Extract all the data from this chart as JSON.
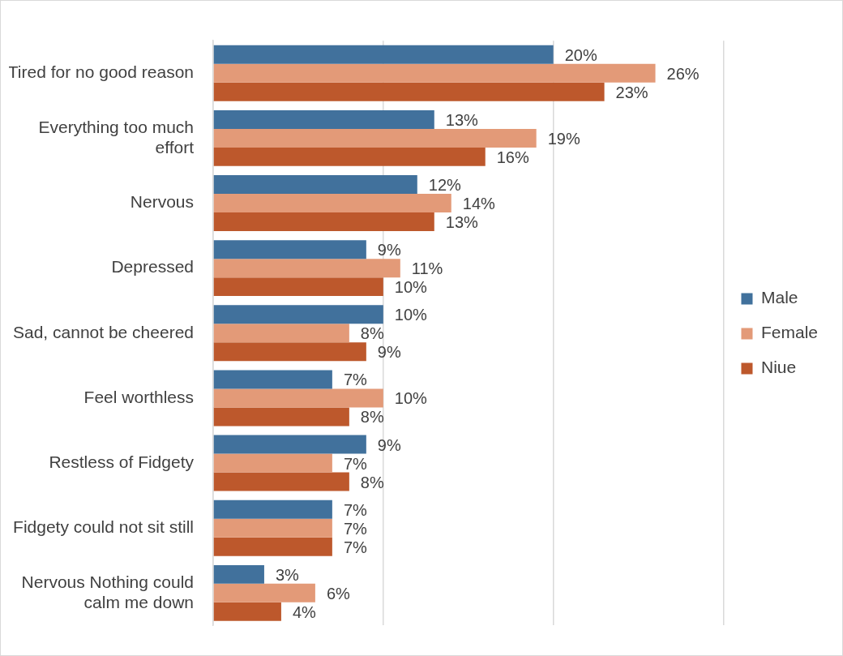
{
  "chart_data": {
    "type": "bar",
    "orientation": "horizontal",
    "categories": [
      "Tired for no good reason",
      "Everything too much effort",
      "Nervous",
      "Depressed",
      "Sad, cannot be cheered",
      "Feel worthless",
      "Restless of Fidgety",
      "Fidgety could not sit still",
      "Nervous Nothing could calm me down"
    ],
    "series": [
      {
        "name": "Male",
        "color": "#41719c",
        "values": [
          20,
          13,
          12,
          9,
          10,
          7,
          9,
          7,
          3
        ],
        "value_labels": [
          "20%",
          "13%",
          "12%",
          "9%",
          "10%",
          "7%",
          "9%",
          "7%",
          "3%"
        ]
      },
      {
        "name": "Female",
        "color": "#e39a78",
        "values": [
          26,
          19,
          14,
          11,
          8,
          10,
          7,
          7,
          6
        ],
        "value_labels": [
          "26%",
          "19%",
          "14%",
          "11%",
          "8%",
          "10%",
          "7%",
          "7%",
          "6%"
        ]
      },
      {
        "name": "Niue",
        "color": "#bd582c",
        "values": [
          23,
          16,
          13,
          10,
          9,
          8,
          8,
          7,
          4
        ],
        "value_labels": [
          "23%",
          "16%",
          "13%",
          "10%",
          "9%",
          "8%",
          "8%",
          "7%",
          "4%"
        ]
      }
    ],
    "xlim": [
      0,
      30
    ],
    "xticks": [
      {
        "value": 0,
        "label": null
      },
      {
        "value": 10,
        "label": null
      },
      {
        "value": 20,
        "label": null
      },
      {
        "value": 30,
        "label": null
      }
    ],
    "tick_labels": "y",
    "grid": "x",
    "legend": "right"
  }
}
